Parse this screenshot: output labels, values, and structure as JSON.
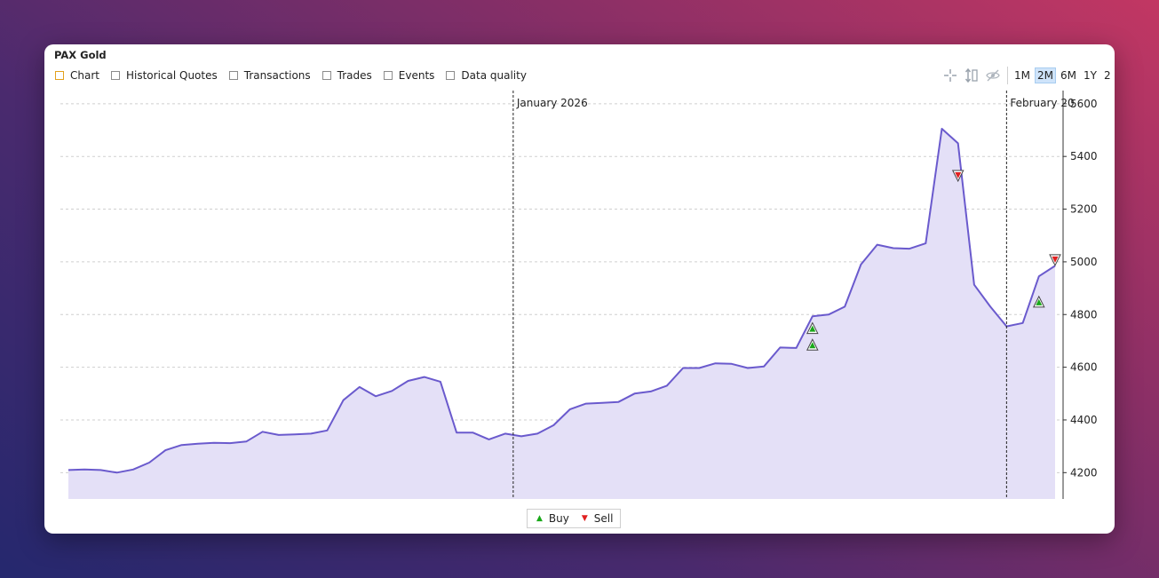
{
  "window": {
    "title": "PAX Gold"
  },
  "tabs": [
    {
      "label": "Chart",
      "active": true
    },
    {
      "label": "Historical Quotes"
    },
    {
      "label": "Transactions"
    },
    {
      "label": "Trades"
    },
    {
      "label": "Events"
    },
    {
      "label": "Data quality"
    }
  ],
  "toolbar": {
    "icons": [
      "crosshair-icon",
      "vertical-scale-icon",
      "hide-eye-icon"
    ],
    "ranges": [
      "1M",
      "2M",
      "6M",
      "1Y",
      "2"
    ],
    "active_range": "2M"
  },
  "legend": {
    "buy_label": "Buy",
    "sell_label": "Sell"
  },
  "colors": {
    "line": "#6a5acd",
    "area": "#e4e0f7",
    "buy": "#18a818",
    "sell": "#e02020",
    "active_tab": "#e3a11d"
  },
  "chart_data": {
    "type": "area",
    "x_labels": [
      "January 2026",
      "February 20"
    ],
    "ylim": [
      4100,
      5650
    ],
    "y_ticks": [
      4200,
      4400,
      4600,
      4800,
      5000,
      5200,
      5400,
      5600
    ],
    "grid": true,
    "series": [
      {
        "values": [
          4210,
          4212,
          4210,
          4200,
          4212,
          4238,
          4285,
          4305,
          4310,
          4313,
          4312,
          4318,
          4355,
          4343,
          4345,
          4348,
          4360,
          4475,
          4525,
          4490,
          4510,
          4548,
          4563,
          4545,
          4352,
          4352,
          4326,
          4348,
          4338,
          4348,
          4380,
          4440,
          4462,
          4465,
          4468,
          4500,
          4508,
          4530,
          4597,
          4597,
          4615,
          4613,
          4597,
          4603,
          4675,
          4673,
          4793,
          4800,
          4830,
          4990,
          5065,
          5052,
          5050,
          5070,
          5505,
          5450,
          4913,
          4830,
          4755,
          4768,
          4945,
          4985
        ]
      }
    ],
    "markers": [
      {
        "type": "buy",
        "index": 46,
        "value": 4745
      },
      {
        "type": "buy",
        "index": 46,
        "value": 4682
      },
      {
        "type": "sell",
        "index": 55,
        "value": 5330
      },
      {
        "type": "buy",
        "index": 60,
        "value": 4845
      },
      {
        "type": "sell",
        "index": 61,
        "value": 5010
      }
    ],
    "date_dividers": [
      {
        "label": "January 2026",
        "index": 27.5
      },
      {
        "label": "February 20",
        "index": 58
      }
    ]
  }
}
